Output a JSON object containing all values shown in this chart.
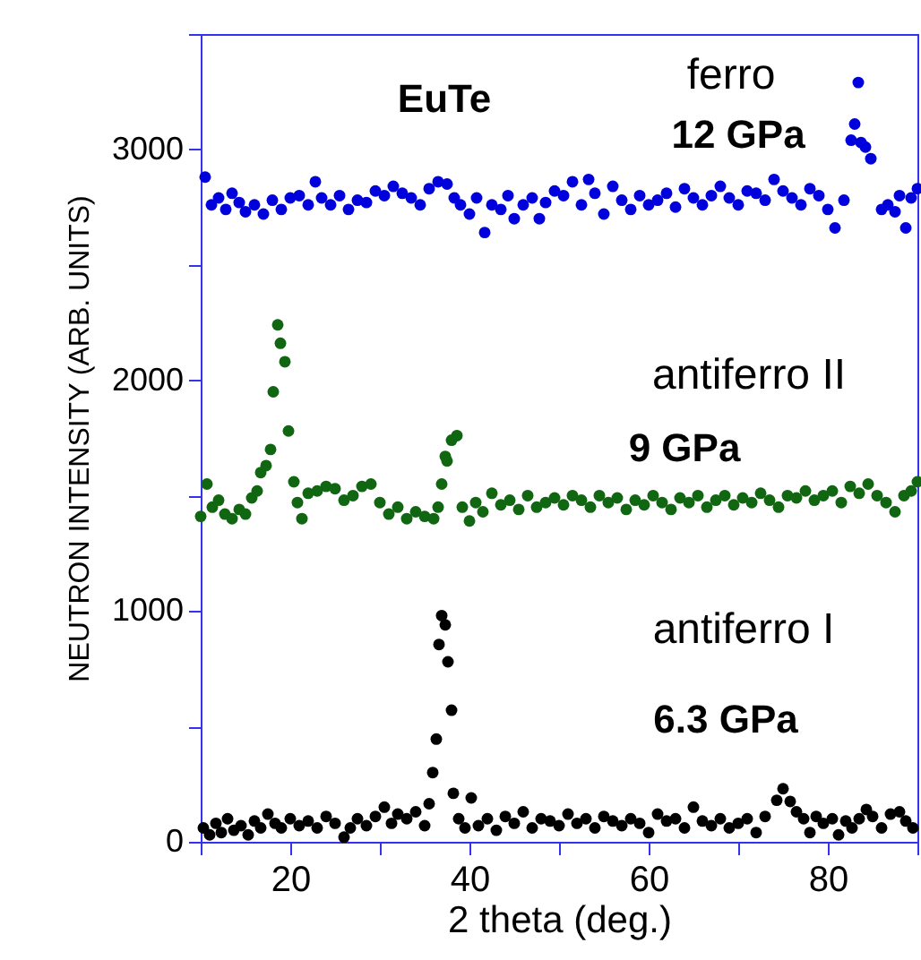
{
  "chart_data": {
    "type": "scatter",
    "xlabel": "2 theta (deg.)",
    "ylabel": "NEUTRON INTENSITY (ARB. UNITS)",
    "marker": "circle",
    "grid": false,
    "legend": false,
    "annotations": [
      "EuTe",
      "ferro",
      "12 GPa",
      "antiferro II",
      "9 GPa",
      "antiferro I",
      "6.3 GPa"
    ],
    "xlim": [
      10,
      90
    ],
    "ylim": [
      0,
      3500
    ],
    "xticks": [
      {
        "value": 10,
        "label": null
      },
      20,
      {
        "value": 30,
        "label": null
      },
      40,
      {
        "value": 50,
        "label": null
      },
      60,
      {
        "value": 70,
        "label": null
      },
      80,
      {
        "value": 90,
        "label": null
      }
    ],
    "yticks": [
      0,
      {
        "value": 500,
        "label": null
      },
      1000,
      {
        "value": 1500,
        "label": null
      },
      2000,
      {
        "value": 2500,
        "label": null
      },
      3000,
      {
        "value": 3500,
        "label": null
      }
    ],
    "series": [
      {
        "color": "#0000dd",
        "x": [
          10.5,
          11.2,
          12,
          12.8,
          13.5,
          14.3,
          15,
          16,
          17,
          18,
          19,
          20,
          21,
          22,
          22.8,
          23.5,
          24.5,
          25.5,
          26.5,
          27.5,
          28.5,
          29.5,
          30.5,
          31.5,
          32.5,
          33.5,
          34.5,
          35.5,
          36.5,
          37.5,
          38.3,
          39,
          40,
          40.8,
          41.7,
          42.5,
          43.5,
          44.3,
          45,
          46,
          47,
          47.8,
          48.5,
          49.5,
          50.5,
          51.5,
          52.5,
          53.3,
          54,
          55,
          56,
          57,
          58,
          59,
          60,
          61,
          62,
          63,
          64,
          65,
          66,
          67,
          68,
          69,
          70,
          71,
          72,
          73,
          74,
          75,
          76,
          77,
          78,
          79,
          80,
          80.8,
          81.8,
          82.6,
          83,
          83.4,
          83.7,
          84.2,
          84.8,
          86,
          86.7,
          87.5,
          88,
          88.7,
          89.3,
          90
        ],
        "values": [
          2880,
          2760,
          2790,
          2740,
          2810,
          2770,
          2730,
          2760,
          2720,
          2780,
          2740,
          2790,
          2800,
          2760,
          2860,
          2790,
          2760,
          2800,
          2740,
          2780,
          2770,
          2820,
          2800,
          2840,
          2810,
          2790,
          2760,
          2830,
          2860,
          2850,
          2790,
          2760,
          2720,
          2790,
          2640,
          2760,
          2740,
          2800,
          2700,
          2760,
          2790,
          2700,
          2770,
          2820,
          2800,
          2860,
          2760,
          2870,
          2810,
          2720,
          2840,
          2780,
          2740,
          2800,
          2760,
          2780,
          2810,
          2750,
          2830,
          2790,
          2760,
          2800,
          2840,
          2790,
          2760,
          2820,
          2810,
          2780,
          2870,
          2820,
          2790,
          2760,
          2830,
          2800,
          2740,
          2660,
          2780,
          3040,
          3110,
          3290,
          3030,
          3010,
          2960,
          2740,
          2760,
          2730,
          2800,
          2660,
          2790,
          2830
        ]
      },
      {
        "color": "#116611",
        "x": [
          10,
          10.7,
          11.3,
          12,
          12.7,
          13.5,
          14.3,
          15,
          15.7,
          16.3,
          16.7,
          17.3,
          17.8,
          18.1,
          18.6,
          18.9,
          19.4,
          19.8,
          20.4,
          20.8,
          21.3,
          22,
          23,
          24,
          25,
          26,
          27,
          28,
          29,
          30,
          31,
          32,
          33,
          34,
          35,
          36,
          36.5,
          36.9,
          37.3,
          37.5,
          38,
          38.6,
          39.2,
          40,
          40.7,
          41.5,
          42.5,
          43.5,
          44.5,
          45.5,
          46.5,
          47.5,
          48.5,
          49.5,
          50.5,
          51.5,
          52.5,
          53.5,
          54.5,
          55.5,
          56.5,
          57.5,
          58.5,
          59.5,
          60.5,
          61.5,
          62.5,
          63.5,
          64.5,
          65.5,
          66.5,
          67.5,
          68.5,
          69.5,
          70.5,
          71.5,
          72.5,
          73.5,
          74.5,
          75.5,
          76.5,
          77.5,
          78.5,
          79.5,
          80.5,
          81.5,
          82.5,
          83.5,
          84.5,
          85.5,
          86.5,
          87.5,
          88.5,
          89.3,
          90
        ],
        "values": [
          1410,
          1550,
          1450,
          1480,
          1420,
          1400,
          1440,
          1420,
          1490,
          1520,
          1600,
          1630,
          1700,
          1950,
          2240,
          2160,
          2080,
          1780,
          1560,
          1470,
          1400,
          1510,
          1520,
          1540,
          1530,
          1480,
          1500,
          1540,
          1550,
          1470,
          1420,
          1450,
          1400,
          1430,
          1410,
          1400,
          1450,
          1550,
          1670,
          1650,
          1740,
          1760,
          1450,
          1390,
          1470,
          1430,
          1510,
          1460,
          1480,
          1440,
          1500,
          1450,
          1470,
          1490,
          1460,
          1500,
          1480,
          1450,
          1500,
          1470,
          1490,
          1440,
          1480,
          1460,
          1500,
          1470,
          1440,
          1490,
          1470,
          1500,
          1450,
          1480,
          1500,
          1460,
          1490,
          1470,
          1510,
          1480,
          1450,
          1500,
          1490,
          1520,
          1480,
          1500,
          1520,
          1470,
          1540,
          1510,
          1550,
          1500,
          1470,
          1430,
          1500,
          1520,
          1560
        ]
      },
      {
        "color": "#000000",
        "x": [
          10.3,
          11,
          11.7,
          12.3,
          13,
          13.7,
          14.5,
          15.3,
          16,
          16.7,
          17.5,
          18.3,
          19,
          20,
          21,
          22,
          23,
          24,
          25,
          26,
          26.7,
          27.5,
          28.5,
          29.5,
          30.5,
          31.3,
          32,
          33,
          34,
          35,
          35.5,
          35.9,
          36.3,
          36.6,
          36.9,
          37.3,
          37.6,
          38,
          38.2,
          38.8,
          39.5,
          40.2,
          41,
          42,
          43,
          44,
          45,
          46,
          47,
          48,
          49,
          50,
          51,
          52,
          53,
          54,
          55,
          56,
          57,
          58,
          59,
          60,
          61,
          62,
          63,
          64,
          65,
          66,
          67,
          68,
          69,
          70,
          71,
          72,
          73,
          74.3,
          75,
          75.8,
          76.5,
          77.3,
          78,
          78.7,
          79.5,
          80.5,
          81.2,
          82,
          82.7,
          83.5,
          84.3,
          85,
          86,
          87,
          88,
          88.7,
          89.5
        ],
        "values": [
          60,
          30,
          80,
          40,
          100,
          50,
          70,
          30,
          90,
          60,
          120,
          80,
          60,
          100,
          70,
          90,
          60,
          110,
          80,
          20,
          60,
          100,
          70,
          110,
          150,
          80,
          120,
          100,
          130,
          70,
          165,
          300,
          445,
          855,
          980,
          940,
          780,
          570,
          210,
          100,
          60,
          190,
          70,
          100,
          50,
          110,
          80,
          130,
          60,
          100,
          90,
          70,
          120,
          80,
          100,
          60,
          110,
          90,
          70,
          100,
          80,
          40,
          120,
          90,
          100,
          60,
          150,
          90,
          70,
          100,
          60,
          80,
          100,
          40,
          110,
          180,
          230,
          175,
          130,
          100,
          40,
          110,
          80,
          100,
          30,
          90,
          60,
          100,
          140,
          110,
          60,
          120,
          130,
          90,
          60
        ]
      }
    ]
  }
}
